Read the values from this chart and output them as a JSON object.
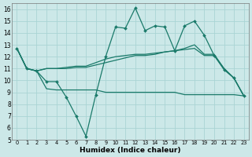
{
  "xlabel": "Humidex (Indice chaleur)",
  "bg_color": "#cce8e8",
  "grid_color": "#aad4d4",
  "line_color": "#1a7a6a",
  "xlim": [
    -0.5,
    23.5
  ],
  "ylim": [
    5,
    16.5
  ],
  "xticks": [
    0,
    1,
    2,
    3,
    4,
    5,
    6,
    7,
    8,
    9,
    10,
    11,
    12,
    13,
    14,
    15,
    16,
    17,
    18,
    19,
    20,
    21,
    22,
    23
  ],
  "yticks": [
    5,
    6,
    7,
    8,
    9,
    10,
    11,
    12,
    13,
    14,
    15,
    16
  ],
  "line_volatile_x": [
    0,
    1,
    2,
    3,
    4,
    5,
    6,
    7,
    8,
    9,
    10,
    11,
    12,
    13,
    14,
    15,
    16,
    17,
    18,
    19,
    20,
    21,
    22,
    23
  ],
  "line_volatile_y": [
    12.7,
    11.0,
    10.8,
    9.9,
    9.9,
    8.6,
    7.0,
    5.3,
    8.8,
    12.0,
    14.5,
    14.4,
    16.1,
    14.2,
    14.6,
    14.5,
    12.5,
    14.6,
    15.0,
    13.8,
    12.1,
    10.9,
    10.2,
    8.7
  ],
  "line_flat_x": [
    0,
    1,
    2,
    3,
    4,
    5,
    6,
    7,
    8,
    9,
    10,
    11,
    12,
    13,
    14,
    15,
    16,
    17,
    18,
    19,
    20,
    21,
    22,
    23
  ],
  "line_flat_y": [
    12.7,
    11.0,
    10.8,
    9.3,
    9.2,
    9.2,
    9.2,
    9.2,
    9.2,
    9.0,
    9.0,
    9.0,
    9.0,
    9.0,
    9.0,
    9.0,
    9.0,
    8.8,
    8.8,
    8.8,
    8.8,
    8.8,
    8.8,
    8.7
  ],
  "line_mid1_x": [
    0,
    1,
    2,
    3,
    4,
    5,
    6,
    7,
    8,
    9,
    10,
    11,
    12,
    13,
    14,
    15,
    16,
    17,
    18,
    19,
    20,
    21,
    22,
    23
  ],
  "line_mid1_y": [
    12.7,
    11.0,
    10.8,
    11.0,
    11.0,
    11.1,
    11.2,
    11.2,
    11.5,
    11.8,
    12.0,
    12.1,
    12.2,
    12.2,
    12.3,
    12.4,
    12.5,
    12.6,
    12.7,
    12.1,
    12.1,
    11.0,
    10.2,
    8.7
  ],
  "line_mid2_x": [
    0,
    1,
    2,
    3,
    4,
    5,
    6,
    7,
    8,
    9,
    10,
    11,
    12,
    13,
    14,
    15,
    16,
    17,
    18,
    19,
    20,
    21,
    22,
    23
  ],
  "line_mid2_y": [
    12.7,
    11.0,
    10.8,
    11.0,
    11.0,
    11.0,
    11.1,
    11.1,
    11.3,
    11.5,
    11.7,
    11.9,
    12.1,
    12.1,
    12.2,
    12.4,
    12.5,
    12.7,
    13.0,
    12.2,
    12.2,
    11.0,
    10.2,
    8.7
  ]
}
